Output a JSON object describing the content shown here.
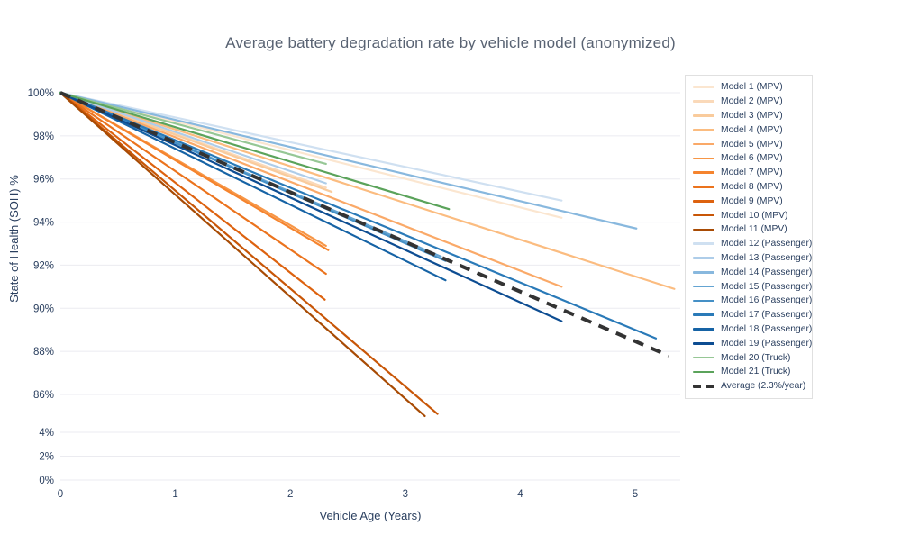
{
  "chart_data": {
    "type": "line",
    "title": "Average battery degradation rate by vehicle model (anonymized)",
    "xlabel": "Vehicle Age (Years)",
    "ylabel": "State of Health (SOH) %",
    "legend_position": "right",
    "grid": "horizontal-only",
    "x_ticks": [
      {
        "label": "0",
        "value": 0
      },
      {
        "label": "1",
        "value": 1
      },
      {
        "label": "2",
        "value": 2
      },
      {
        "label": "3",
        "value": 3
      },
      {
        "label": "4",
        "value": 4
      },
      {
        "label": "5",
        "value": 5
      }
    ],
    "y_ticks": [
      {
        "label": "100%",
        "value": 100
      },
      {
        "label": "98%",
        "value": 98
      },
      {
        "label": "96%",
        "value": 96
      },
      {
        "label": "94%",
        "value": 94
      },
      {
        "label": "92%",
        "value": 92
      },
      {
        "label": "90%",
        "value": 90
      },
      {
        "label": "88%",
        "value": 88
      },
      {
        "label": "86%",
        "value": 86
      },
      {
        "label": "4%",
        "value": 4
      },
      {
        "label": "2%",
        "value": 2
      },
      {
        "label": "0%",
        "value": 0
      }
    ],
    "y_axis_note": "broken axis: 86% to 4% compressed",
    "x_range": [
      0,
      5.4
    ],
    "series": [
      {
        "name": "Model 1 (MPV)",
        "color": "#fbe6d0",
        "x": [
          0,
          4.36
        ],
        "y": [
          100,
          94.2
        ],
        "dash": false
      },
      {
        "name": "Model 2 (MPV)",
        "color": "#fad9b9",
        "x": [
          0,
          2.31
        ],
        "y": [
          100,
          95.6
        ],
        "dash": false
      },
      {
        "name": "Model 3 (MPV)",
        "color": "#f9cb9c",
        "x": [
          0,
          2.36
        ],
        "y": [
          100,
          95.4
        ],
        "dash": false
      },
      {
        "name": "Model 4 (MPV)",
        "color": "#fbbc80",
        "x": [
          0,
          5.34
        ],
        "y": [
          100,
          90.9
        ],
        "dash": false
      },
      {
        "name": "Model 5 (MPV)",
        "color": "#faa968",
        "x": [
          0,
          4.36
        ],
        "y": [
          100,
          91.0
        ],
        "dash": false
      },
      {
        "name": "Model 6 (MPV)",
        "color": "#f79646",
        "x": [
          0,
          2.31
        ],
        "y": [
          100,
          92.9
        ],
        "dash": false
      },
      {
        "name": "Model 7 (MPV)",
        "color": "#f5842e",
        "x": [
          0,
          2.33
        ],
        "y": [
          100,
          92.7
        ],
        "dash": false
      },
      {
        "name": "Model 8 (MPV)",
        "color": "#eb731d",
        "x": [
          0,
          2.31
        ],
        "y": [
          100,
          91.6
        ],
        "dash": false
      },
      {
        "name": "Model 9 (MPV)",
        "color": "#dd620f",
        "x": [
          0,
          2.3
        ],
        "y": [
          100,
          90.4
        ],
        "dash": false
      },
      {
        "name": "Model 10 (MPV)",
        "color": "#c85607",
        "x": [
          0,
          3.28
        ],
        "y": [
          100,
          85.1
        ],
        "dash": false
      },
      {
        "name": "Model 11 (MPV)",
        "color": "#a84b04",
        "x": [
          0,
          3.17
        ],
        "y": [
          100,
          85.0
        ],
        "dash": false
      },
      {
        "name": "Model 12 (Passenger)",
        "color": "#cfe0f1",
        "x": [
          0,
          4.36
        ],
        "y": [
          100,
          95.0
        ],
        "dash": false
      },
      {
        "name": "Model 13 (Passenger)",
        "color": "#aecde9",
        "x": [
          0,
          2.31
        ],
        "y": [
          100,
          95.8
        ],
        "dash": false
      },
      {
        "name": "Model 14 (Passenger)",
        "color": "#88b8de",
        "x": [
          0,
          5.01
        ],
        "y": [
          100,
          93.7
        ],
        "dash": false
      },
      {
        "name": "Model 15 (Passenger)",
        "color": "#64a4d2",
        "x": [
          0,
          3.31
        ],
        "y": [
          100,
          92.4
        ],
        "dash": false
      },
      {
        "name": "Model 16 (Passenger)",
        "color": "#4590c6",
        "x": [
          0,
          3.35
        ],
        "y": [
          100,
          92.2
        ],
        "dash": false
      },
      {
        "name": "Model 17 (Passenger)",
        "color": "#2a7ab8",
        "x": [
          0,
          5.18
        ],
        "y": [
          100,
          88.6
        ],
        "dash": false
      },
      {
        "name": "Model 18 (Passenger)",
        "color": "#1663a5",
        "x": [
          0,
          3.35
        ],
        "y": [
          100,
          91.3
        ],
        "dash": false
      },
      {
        "name": "Model 19 (Passenger)",
        "color": "#0d4d92",
        "x": [
          0,
          4.36
        ],
        "y": [
          100,
          89.4
        ],
        "dash": false
      },
      {
        "name": "Model 20 (Truck)",
        "color": "#96c795",
        "x": [
          0,
          2.31
        ],
        "y": [
          100,
          96.7
        ],
        "dash": false
      },
      {
        "name": "Model 21 (Truck)",
        "color": "#5ba35b",
        "x": [
          0,
          3.38
        ],
        "y": [
          100,
          94.6
        ],
        "dash": false
      },
      {
        "name": "Average (2.3%/year)",
        "color": "#333333",
        "x": [
          0,
          5.29
        ],
        "y": [
          100,
          87.8
        ],
        "dash": true
      }
    ]
  }
}
